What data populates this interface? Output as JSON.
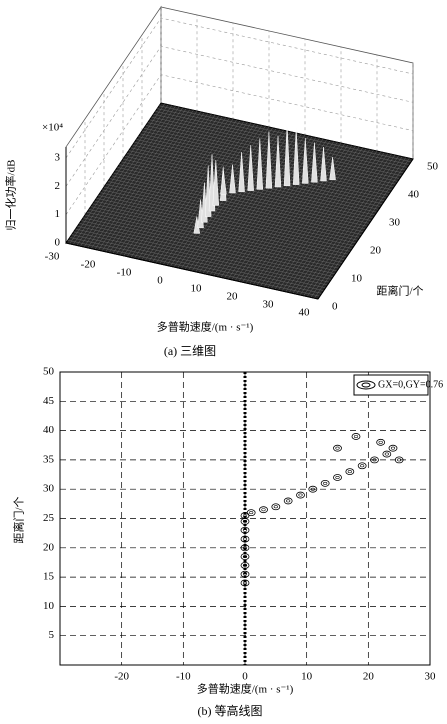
{
  "chart_data": [
    {
      "type": "surface3d",
      "caption": "(a) 三维图",
      "xlabel": "多普勒速度/(m · s⁻¹)",
      "ylabel": "距离门/个",
      "zlabel": "归一化功率/dB",
      "zmultiplier": "×10⁴",
      "xlim": [
        -30,
        40
      ],
      "ylim": [
        0,
        50
      ],
      "zlim": [
        0,
        3
      ],
      "xticks": [
        -30,
        -20,
        -10,
        0,
        10,
        20,
        30,
        40
      ],
      "yticks": [
        0,
        10,
        20,
        30,
        40,
        50
      ],
      "zticks": [
        0,
        1,
        2,
        3
      ],
      "series": [
        {
          "color": "#e0e0e0",
          "x": [
            0,
            0,
            0,
            0,
            0,
            0,
            1,
            0,
            2,
            4,
            6,
            8,
            10,
            12,
            14,
            16,
            18,
            20,
            22,
            24
          ],
          "y": [
            12,
            14,
            16,
            18,
            20,
            22,
            24,
            26,
            27,
            28,
            29,
            30,
            31,
            32,
            33,
            34,
            35,
            36,
            37,
            38
          ],
          "z": [
            0.6,
            1.0,
            1.4,
            1.8,
            2.0,
            1.6,
            1.2,
            0.8,
            1.0,
            1.4,
            1.6,
            1.8,
            2.0,
            1.8,
            2.2,
            2.0,
            1.6,
            1.4,
            1.2,
            0.8
          ]
        }
      ]
    },
    {
      "type": "contour",
      "caption": "(b) 等高线图",
      "xlabel": "多普勒速度/(m · s⁻¹)",
      "ylabel": "距离门/个",
      "xlim": [
        -30,
        30
      ],
      "ylim": [
        0,
        50
      ],
      "xticks": [
        -20,
        -10,
        0,
        10,
        20,
        30
      ],
      "yticks": [
        5,
        10,
        15,
        20,
        25,
        30,
        35,
        40,
        45,
        50
      ],
      "grid": true,
      "legend": "upper right",
      "series": [
        {
          "name": "GX=0,GY=0.76",
          "color": "#000000",
          "x": [
            0,
            0,
            0,
            0,
            0,
            0,
            0,
            0,
            0,
            1,
            3,
            5,
            7,
            9,
            11,
            13,
            15,
            17,
            19,
            21,
            23,
            25,
            15,
            18,
            22,
            24
          ],
          "y": [
            14,
            15.5,
            17,
            18.5,
            20,
            21.5,
            23,
            24.5,
            25.5,
            26,
            26.5,
            27,
            28,
            29,
            30,
            31,
            32,
            33,
            34,
            35,
            36,
            35,
            37,
            39,
            38,
            37
          ]
        }
      ]
    }
  ]
}
